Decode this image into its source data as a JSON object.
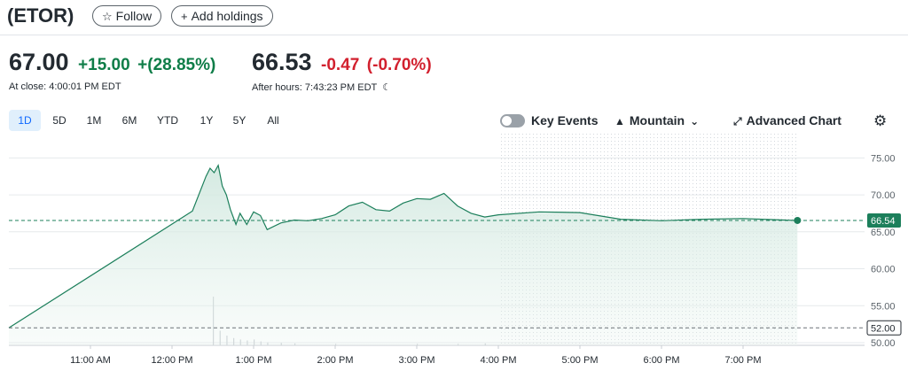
{
  "header": {
    "ticker": "(ETOR)",
    "follow_label": "Follow",
    "follow_icon": "star-outline-icon",
    "add_holdings_label": "Add holdings",
    "add_holdings_icon": "plus-icon"
  },
  "quote": {
    "close_price": "67.00",
    "close_change": "+15.00",
    "close_change_pct": "+(28.85%)",
    "close_time": "At close: 4:00:01 PM EDT",
    "after_price": "66.53",
    "after_change": "-0.47",
    "after_change_pct": "(-0.70%)",
    "after_time": "After hours: 7:43:23 PM EDT",
    "after_icon": "moon-icon"
  },
  "ranges": [
    "1D",
    "5D",
    "1M",
    "6M",
    "YTD",
    "1Y",
    "5Y",
    "All"
  ],
  "active_range": "1D",
  "controls": {
    "key_events_label": "Key Events",
    "key_events_on": false,
    "chart_type_label": "Mountain",
    "chart_type_icon": "mountain-icon",
    "advanced_chart_label": "Advanced Chart",
    "advanced_chart_icon": "expand-arrow-icon",
    "settings_icon": "gear-icon"
  },
  "colors": {
    "positive": "#0f7d48",
    "negative": "#d2202e",
    "line": "#1c7f5b",
    "fill": "#cfe7de",
    "active_range_bg": "#e0effc",
    "active_range_text": "#0f69ff"
  },
  "chart_data": {
    "type": "area",
    "ylim": [
      50,
      76
    ],
    "y_ticks": [
      "75.00",
      "70.00",
      "65.00",
      "60.00",
      "55.00",
      "50.00"
    ],
    "x_ticks": [
      "11:00 AM",
      "12:00 PM",
      "1:00 PM",
      "2:00 PM",
      "3:00 PM",
      "4:00 PM",
      "5:00 PM",
      "6:00 PM",
      "7:00 PM"
    ],
    "after_hours_shaded_from": "4:00 PM",
    "previous_close": 52.0,
    "previous_close_label": "52.00",
    "last_price": 66.54,
    "last_price_label": "66.54",
    "series": [
      {
        "x": [
          "10:00",
          "12:15",
          "12:25",
          "12:28",
          "12:31",
          "12:34",
          "12:37",
          "12:40",
          "12:43",
          "12:47",
          "12:50",
          "12:55",
          "13:00",
          "13:05",
          "13:10",
          "13:20",
          "13:30",
          "13:40",
          "13:50",
          "14:00",
          "14:10",
          "14:20",
          "14:30",
          "14:40",
          "14:50",
          "15:00",
          "15:10",
          "15:20",
          "15:30",
          "15:40",
          "15:50",
          "16:00",
          "16:30",
          "17:00",
          "17:30",
          "18:00",
          "18:30",
          "19:00",
          "19:30",
          "19:40"
        ],
        "values": [
          52.0,
          67.8,
          72.5,
          73.6,
          73.0,
          74.0,
          71.2,
          70.0,
          68.0,
          66.0,
          67.5,
          66.0,
          67.7,
          67.2,
          65.3,
          66.2,
          66.6,
          66.5,
          66.8,
          67.3,
          68.5,
          69.0,
          68.0,
          67.8,
          68.9,
          69.5,
          69.4,
          70.2,
          68.5,
          67.5,
          67.0,
          67.3,
          67.7,
          67.6,
          66.7,
          66.5,
          66.7,
          66.8,
          66.6,
          66.54
        ]
      }
    ],
    "volume_x": [
      "12:30",
      "12:35",
      "12:40",
      "12:45",
      "12:50",
      "12:55",
      "13:00",
      "13:05",
      "13:10",
      "13:20",
      "13:30",
      "14:00",
      "15:00",
      "15:30",
      "15:50"
    ],
    "volume_rel": [
      1.0,
      0.3,
      0.2,
      0.15,
      0.12,
      0.1,
      0.12,
      0.08,
      0.06,
      0.05,
      0.04,
      0.03,
      0.03,
      0.03,
      0.04
    ]
  }
}
